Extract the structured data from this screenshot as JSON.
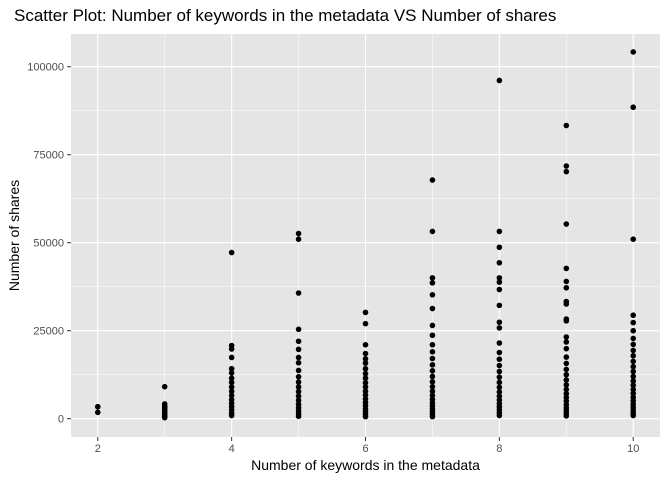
{
  "chart_data": {
    "type": "scatter",
    "title": "Scatter Plot: Number of keywords in the metadata VS Number of shares",
    "xlabel": "Number of keywords in the metadata",
    "ylabel": "Number of shares",
    "xlim": [
      1.6,
      10.4
    ],
    "ylim": [
      -5200,
      109300
    ],
    "x_ticks": [
      2,
      4,
      6,
      8,
      10
    ],
    "x_tick_labels": [
      "2",
      "4",
      "6",
      "8",
      "10"
    ],
    "y_ticks": [
      0,
      25000,
      50000,
      75000,
      100000
    ],
    "y_tick_labels": [
      "0",
      "25000",
      "50000",
      "75000",
      "100000"
    ],
    "grid": true,
    "legend": "none",
    "colors": {
      "panel": "#e5e5e5",
      "grid": "#ffffff",
      "point": "#000000",
      "tick": "#333333"
    },
    "series": [
      {
        "points": [
          [
            2,
            3400
          ],
          [
            2,
            1800
          ],
          [
            3,
            9100
          ],
          [
            3,
            4200
          ],
          [
            3,
            3600
          ],
          [
            3,
            3100
          ],
          [
            3,
            2600
          ],
          [
            3,
            2100
          ],
          [
            3,
            1700
          ],
          [
            3,
            1300
          ],
          [
            3,
            900
          ],
          [
            3,
            600
          ],
          [
            3,
            300
          ],
          [
            4,
            47200
          ],
          [
            4,
            20800
          ],
          [
            4,
            19800
          ],
          [
            4,
            17400
          ],
          [
            4,
            14200
          ],
          [
            4,
            13000
          ],
          [
            4,
            11500
          ],
          [
            4,
            10300
          ],
          [
            4,
            9000
          ],
          [
            4,
            7800
          ],
          [
            4,
            6600
          ],
          [
            4,
            5400
          ],
          [
            4,
            4400
          ],
          [
            4,
            3400
          ],
          [
            4,
            2500
          ],
          [
            4,
            1600
          ],
          [
            4,
            900
          ],
          [
            5,
            52600
          ],
          [
            5,
            51000
          ],
          [
            5,
            35700
          ],
          [
            5,
            25400
          ],
          [
            5,
            22000
          ],
          [
            5,
            19700
          ],
          [
            5,
            17400
          ],
          [
            5,
            15900
          ],
          [
            5,
            13700
          ],
          [
            5,
            11900
          ],
          [
            5,
            10400
          ],
          [
            5,
            9000
          ],
          [
            5,
            7700
          ],
          [
            5,
            6400
          ],
          [
            5,
            5200
          ],
          [
            5,
            4100
          ],
          [
            5,
            3100
          ],
          [
            5,
            2200
          ],
          [
            5,
            1400
          ],
          [
            5,
            700
          ],
          [
            6,
            30200
          ],
          [
            6,
            27000
          ],
          [
            6,
            21000
          ],
          [
            6,
            18500
          ],
          [
            6,
            17000
          ],
          [
            6,
            15800
          ],
          [
            6,
            14200
          ],
          [
            6,
            12800
          ],
          [
            6,
            11500
          ],
          [
            6,
            10200
          ],
          [
            6,
            9000
          ],
          [
            6,
            7800
          ],
          [
            6,
            6700
          ],
          [
            6,
            5600
          ],
          [
            6,
            4600
          ],
          [
            6,
            3700
          ],
          [
            6,
            2800
          ],
          [
            6,
            2000
          ],
          [
            6,
            1300
          ],
          [
            6,
            600
          ],
          [
            7,
            67800
          ],
          [
            7,
            53200
          ],
          [
            7,
            40000
          ],
          [
            7,
            38600
          ],
          [
            7,
            35200
          ],
          [
            7,
            31300
          ],
          [
            7,
            26500
          ],
          [
            7,
            23700
          ],
          [
            7,
            21000
          ],
          [
            7,
            19000
          ],
          [
            7,
            17100
          ],
          [
            7,
            15300
          ],
          [
            7,
            13600
          ],
          [
            7,
            12000
          ],
          [
            7,
            10500
          ],
          [
            7,
            9100
          ],
          [
            7,
            7800
          ],
          [
            7,
            6600
          ],
          [
            7,
            5500
          ],
          [
            7,
            4500
          ],
          [
            7,
            3600
          ],
          [
            7,
            2800
          ],
          [
            7,
            2000
          ],
          [
            7,
            1300
          ],
          [
            7,
            600
          ],
          [
            8,
            96100
          ],
          [
            8,
            53200
          ],
          [
            8,
            48700
          ],
          [
            8,
            44300
          ],
          [
            8,
            40000
          ],
          [
            8,
            38800
          ],
          [
            8,
            36700
          ],
          [
            8,
            32200
          ],
          [
            8,
            27400
          ],
          [
            8,
            25800
          ],
          [
            8,
            21500
          ],
          [
            8,
            18800
          ],
          [
            8,
            16900
          ],
          [
            8,
            15100
          ],
          [
            8,
            13400
          ],
          [
            8,
            11800
          ],
          [
            8,
            10300
          ],
          [
            8,
            8900
          ],
          [
            8,
            7600
          ],
          [
            8,
            6400
          ],
          [
            8,
            5300
          ],
          [
            8,
            4300
          ],
          [
            8,
            3400
          ],
          [
            8,
            2500
          ],
          [
            8,
            1700
          ],
          [
            8,
            900
          ],
          [
            9,
            83300
          ],
          [
            9,
            71800
          ],
          [
            9,
            70200
          ],
          [
            9,
            55300
          ],
          [
            9,
            42700
          ],
          [
            9,
            39000
          ],
          [
            9,
            37200
          ],
          [
            9,
            33300
          ],
          [
            9,
            32600
          ],
          [
            9,
            28300
          ],
          [
            9,
            27800
          ],
          [
            9,
            23200
          ],
          [
            9,
            21800
          ],
          [
            9,
            19900
          ],
          [
            9,
            17500
          ],
          [
            9,
            15700
          ],
          [
            9,
            14000
          ],
          [
            9,
            12500
          ],
          [
            9,
            11000
          ],
          [
            9,
            9600
          ],
          [
            9,
            8300
          ],
          [
            9,
            7100
          ],
          [
            9,
            6000
          ],
          [
            9,
            5000
          ],
          [
            9,
            4000
          ],
          [
            9,
            3100
          ],
          [
            9,
            2300
          ],
          [
            9,
            1500
          ],
          [
            9,
            800
          ],
          [
            10,
            104200
          ],
          [
            10,
            88500
          ],
          [
            10,
            51000
          ],
          [
            10,
            29400
          ],
          [
            10,
            27300
          ],
          [
            10,
            25000
          ],
          [
            10,
            22800
          ],
          [
            10,
            21100
          ],
          [
            10,
            19400
          ],
          [
            10,
            17900
          ],
          [
            10,
            16300
          ],
          [
            10,
            14800
          ],
          [
            10,
            13400
          ],
          [
            10,
            12000
          ],
          [
            10,
            10700
          ],
          [
            10,
            9500
          ],
          [
            10,
            8300
          ],
          [
            10,
            7200
          ],
          [
            10,
            6100
          ],
          [
            10,
            5100
          ],
          [
            10,
            4100
          ],
          [
            10,
            3200
          ],
          [
            10,
            2400
          ],
          [
            10,
            1600
          ],
          [
            10,
            900
          ]
        ]
      }
    ]
  }
}
